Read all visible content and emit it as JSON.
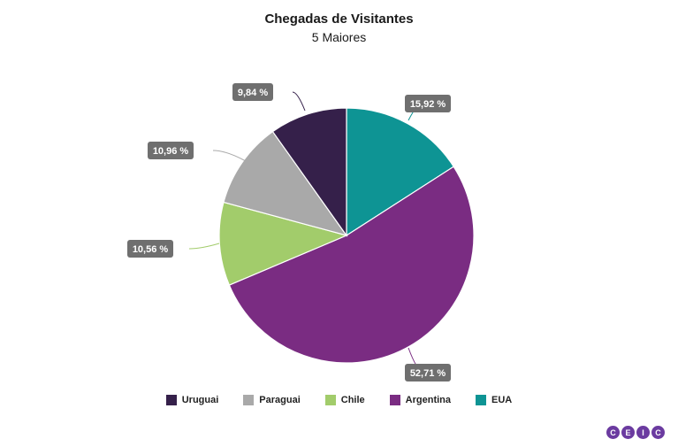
{
  "chart_data": {
    "type": "pie",
    "title": "Chegadas de Visitantes",
    "subtitle": "5 Maiores",
    "slices": [
      {
        "name": "EUA",
        "value": 15.92,
        "label": "15,92 %",
        "color": "#0e9494"
      },
      {
        "name": "Argentina",
        "value": 52.71,
        "label": "52,71 %",
        "color": "#7a2c82"
      },
      {
        "name": "Chile",
        "value": 10.56,
        "label": "10,56 %",
        "color": "#a2cc6b"
      },
      {
        "name": "Paraguai",
        "value": 10.96,
        "label": "10,96 %",
        "color": "#a9a9a9"
      },
      {
        "name": "Uruguai",
        "value": 9.84,
        "label": "9,84 %",
        "color": "#35204a"
      }
    ],
    "legend": [
      "Uruguai",
      "Paraguai",
      "Chile",
      "Argentina",
      "EUA"
    ],
    "legend_position": "bottom"
  },
  "logo": {
    "letters": [
      "C",
      "E",
      "I",
      "C"
    ],
    "color": "#6b3ba0"
  }
}
